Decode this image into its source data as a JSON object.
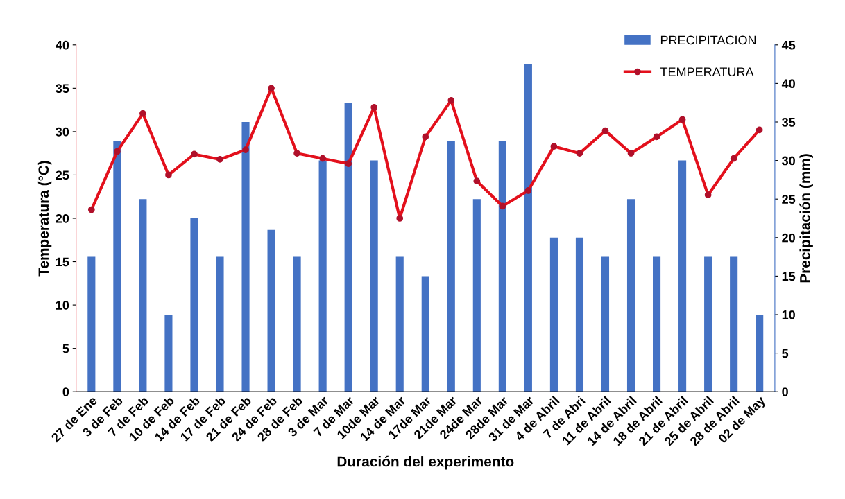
{
  "chart_data": {
    "type": "bar",
    "xlabel": "Duración del experimento",
    "ylabel": "Temperatura (°C)",
    "y2label": "Precipitación (mm)",
    "categories": [
      "27 de Ene",
      "3 de Feb",
      "7 de Feb",
      "10 de Feb",
      "14 de Feb",
      "17 de Feb",
      "21 de Feb",
      "24 de Feb",
      "28 de Feb",
      "3 de Mar",
      "7 de Mar",
      "10de Mar",
      "14 de Mar",
      "17de Mar",
      "21de Mar",
      "24de Mar",
      "28de Mar",
      "31 de Mar",
      "4 de Abril",
      "7 de Abri",
      "11 de Abril",
      "14 de Abril",
      "18 de Abril",
      "21 de Abril",
      "25 de Abril",
      "28 de Abril",
      "02 de May"
    ],
    "series": [
      {
        "name": "PRECIPITACION",
        "axis": "y2",
        "color": "#4472c4",
        "values": [
          17.5,
          32.5,
          25,
          10,
          22.5,
          17.5,
          35,
          21,
          17.5,
          30,
          37.5,
          30,
          17.5,
          15,
          32.5,
          25,
          32.5,
          42.5,
          20,
          20,
          17.5,
          25,
          17.5,
          30,
          17.5,
          17.5,
          10
        ]
      },
      {
        "name": "TEMPERATURA",
        "type": "line",
        "axis": "y",
        "color": "#e3101c",
        "marker": "circle",
        "values": [
          21,
          27.7,
          32.1,
          25,
          27.4,
          26.8,
          27.9,
          35,
          27.5,
          26.9,
          26.3,
          32.8,
          20,
          29.4,
          33.6,
          24.3,
          21.4,
          23.2,
          28.3,
          27.5,
          30.1,
          27.5,
          29.4,
          31.4,
          22.7,
          26.9,
          30.2
        ]
      }
    ],
    "ylim": [
      0,
      40
    ],
    "yticks": [
      0,
      5,
      10,
      15,
      20,
      25,
      30,
      35,
      40
    ],
    "y2lim": [
      0,
      45
    ],
    "y2ticks": [
      0,
      5,
      10,
      15,
      20,
      25,
      30,
      35,
      40,
      45
    ],
    "grid": false,
    "legend": "top right"
  }
}
